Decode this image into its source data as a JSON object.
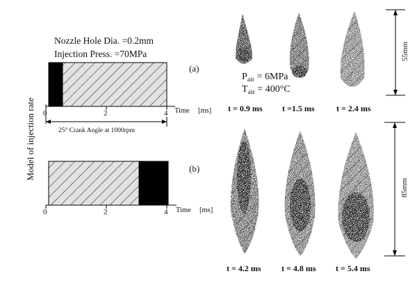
{
  "conditions": {
    "nozzle": "Nozzle Hole Dia. =0.2mm",
    "pressure": "Injection Press. =70MPa",
    "p_air_symbol": "P",
    "p_air_sub": "air",
    "p_air_value": " = 6MPa",
    "t_air_symbol": "T",
    "t_air_sub": "air",
    "t_air_value": " = 400°C"
  },
  "y_axis_label": "Model of injection rate",
  "panel_a": {
    "label": "(a)",
    "ticks": [
      "0",
      "2",
      "4"
    ],
    "x_label": "Time",
    "x_unit": "[ms]",
    "span_label": "25°  Crank Angle at 1000rpm"
  },
  "panel_b": {
    "label": "(b)",
    "ticks": [
      "0",
      "2",
      "4"
    ],
    "x_label": "Time",
    "x_unit": "[ms]"
  },
  "captions_a": [
    "t = 0.9 ms",
    "t =1.5 ms",
    "t = 2.4 ms"
  ],
  "captions_b": [
    "t = 4.2 ms",
    "t = 4.8 ms",
    "t = 5.4 ms"
  ],
  "scale_a": "55mm",
  "scale_b": "85mm"
}
